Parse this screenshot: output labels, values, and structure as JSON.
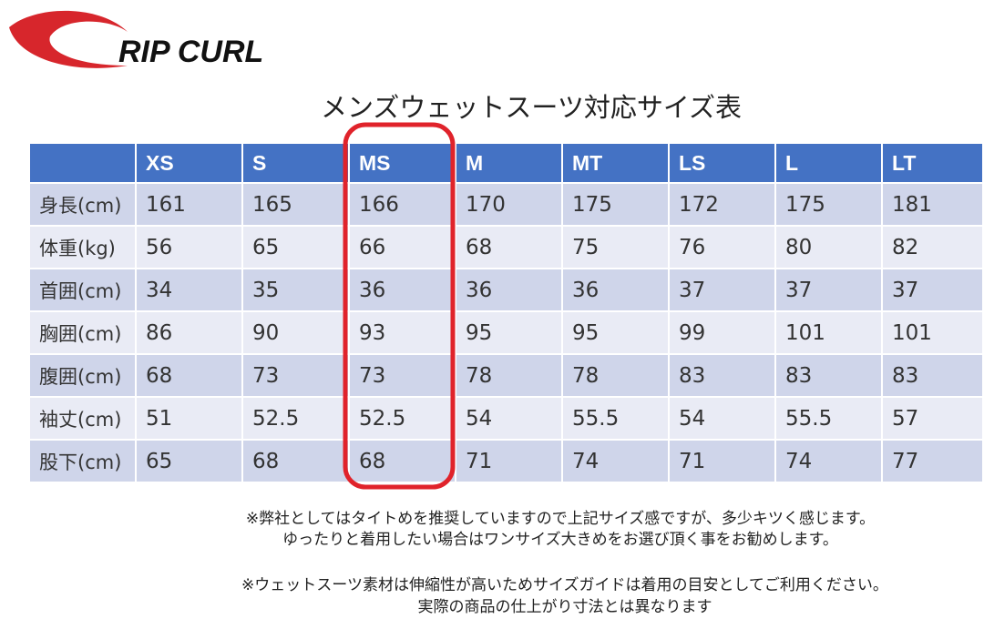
{
  "brand": "RIP CURL",
  "title": "メンズウェットスーツ対応サイズ表",
  "table": {
    "header": [
      "XS",
      "S",
      "MS",
      "M",
      "MT",
      "LS",
      "L",
      "LT"
    ],
    "rows": [
      [
        "身長(cm)",
        161,
        165,
        166,
        170,
        175,
        172,
        175,
        181
      ],
      [
        "体重(kg)",
        56,
        65,
        66,
        68,
        75,
        76,
        80,
        82
      ],
      [
        "首囲(cm)",
        34,
        35,
        36,
        36,
        36,
        37,
        37,
        37
      ],
      [
        "胸囲(cm)",
        86,
        90,
        93,
        95,
        95,
        99,
        101,
        101
      ],
      [
        "腹囲(cm)",
        68,
        73,
        73,
        78,
        78,
        83,
        83,
        83
      ],
      [
        "袖丈(cm)",
        51,
        52.5,
        52.5,
        54,
        55.5,
        54,
        55.5,
        57
      ],
      [
        "股下(cm)",
        65,
        68,
        68,
        71,
        74,
        71,
        74,
        77
      ]
    ]
  },
  "notes": [
    "※弊社としてはタイトめを推奨していますので上記サイズ感ですが、多少キツく感じます。",
    "ゆったりと着用したい場合はワンサイズ大きめをお選び頂く事をお勧めします。",
    "※ウェットスーツ素材は伸縮性が高いためサイズガイドは着用の目安としてご利用ください。",
    "実際の商品の仕上がり寸法とは異なります"
  ]
}
